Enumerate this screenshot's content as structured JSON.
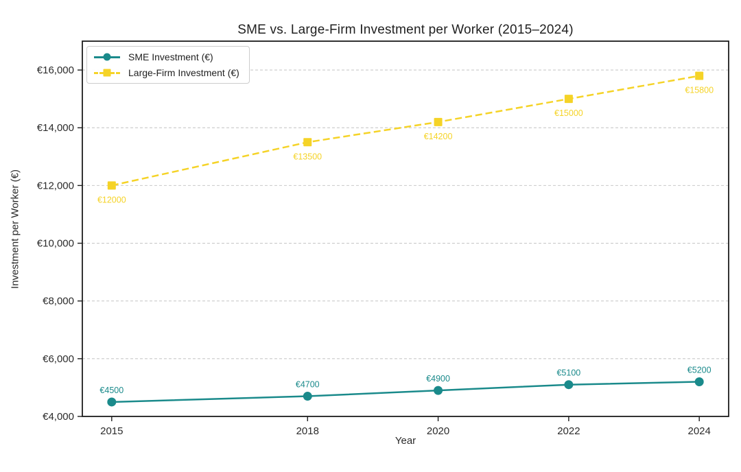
{
  "colors": {
    "sme": "#1a8a8b",
    "large_firm": "#f5d327",
    "grid": "#c9c9c9",
    "spine": "#1c1c1c",
    "tick_label": "#2b2b2b",
    "title": "#1f1f1f",
    "background": "#ffffff"
  },
  "chart_data": {
    "type": "line",
    "title": "SME vs. Large-Firm Investment per Worker (2015–2024)",
    "xlabel": "Year",
    "ylabel": "Investment per Worker (€)",
    "x": [
      2015,
      2018,
      2020,
      2022,
      2024
    ],
    "series": [
      {
        "name": "SME Investment (€)",
        "values": [
          4500,
          4700,
          4900,
          5100,
          5200
        ],
        "color": "#1a8a8b",
        "line_style": "solid",
        "marker": "circle",
        "point_labels": [
          "€4500",
          "€4700",
          "€4900",
          "€5100",
          "€5200"
        ],
        "label_position": "above"
      },
      {
        "name": "Large-Firm Investment (€)",
        "values": [
          12000,
          13500,
          14200,
          15000,
          15800
        ],
        "color": "#f5d327",
        "line_style": "dashed",
        "marker": "square",
        "point_labels": [
          "€12000",
          "€13500",
          "€14200",
          "€15000",
          "€15800"
        ],
        "label_position": "below"
      }
    ],
    "xlim": [
      2014.55,
      2024.45
    ],
    "ylim": [
      4000,
      17000
    ],
    "xticks": [
      {
        "value": 2015,
        "label": "2015"
      },
      {
        "value": 2018,
        "label": "2018"
      },
      {
        "value": 2020,
        "label": "2020"
      },
      {
        "value": 2022,
        "label": "2022"
      },
      {
        "value": 2024,
        "label": "2024"
      }
    ],
    "yticks": [
      {
        "value": 4000,
        "label": "€4,000"
      },
      {
        "value": 6000,
        "label": "€6,000"
      },
      {
        "value": 8000,
        "label": "€8,000"
      },
      {
        "value": 10000,
        "label": "€10,000"
      },
      {
        "value": 12000,
        "label": "€12,000"
      },
      {
        "value": 14000,
        "label": "€14,000"
      },
      {
        "value": 16000,
        "label": "€16,000"
      }
    ],
    "grid": "horizontal-dashed",
    "legend_position": "upper-left"
  }
}
